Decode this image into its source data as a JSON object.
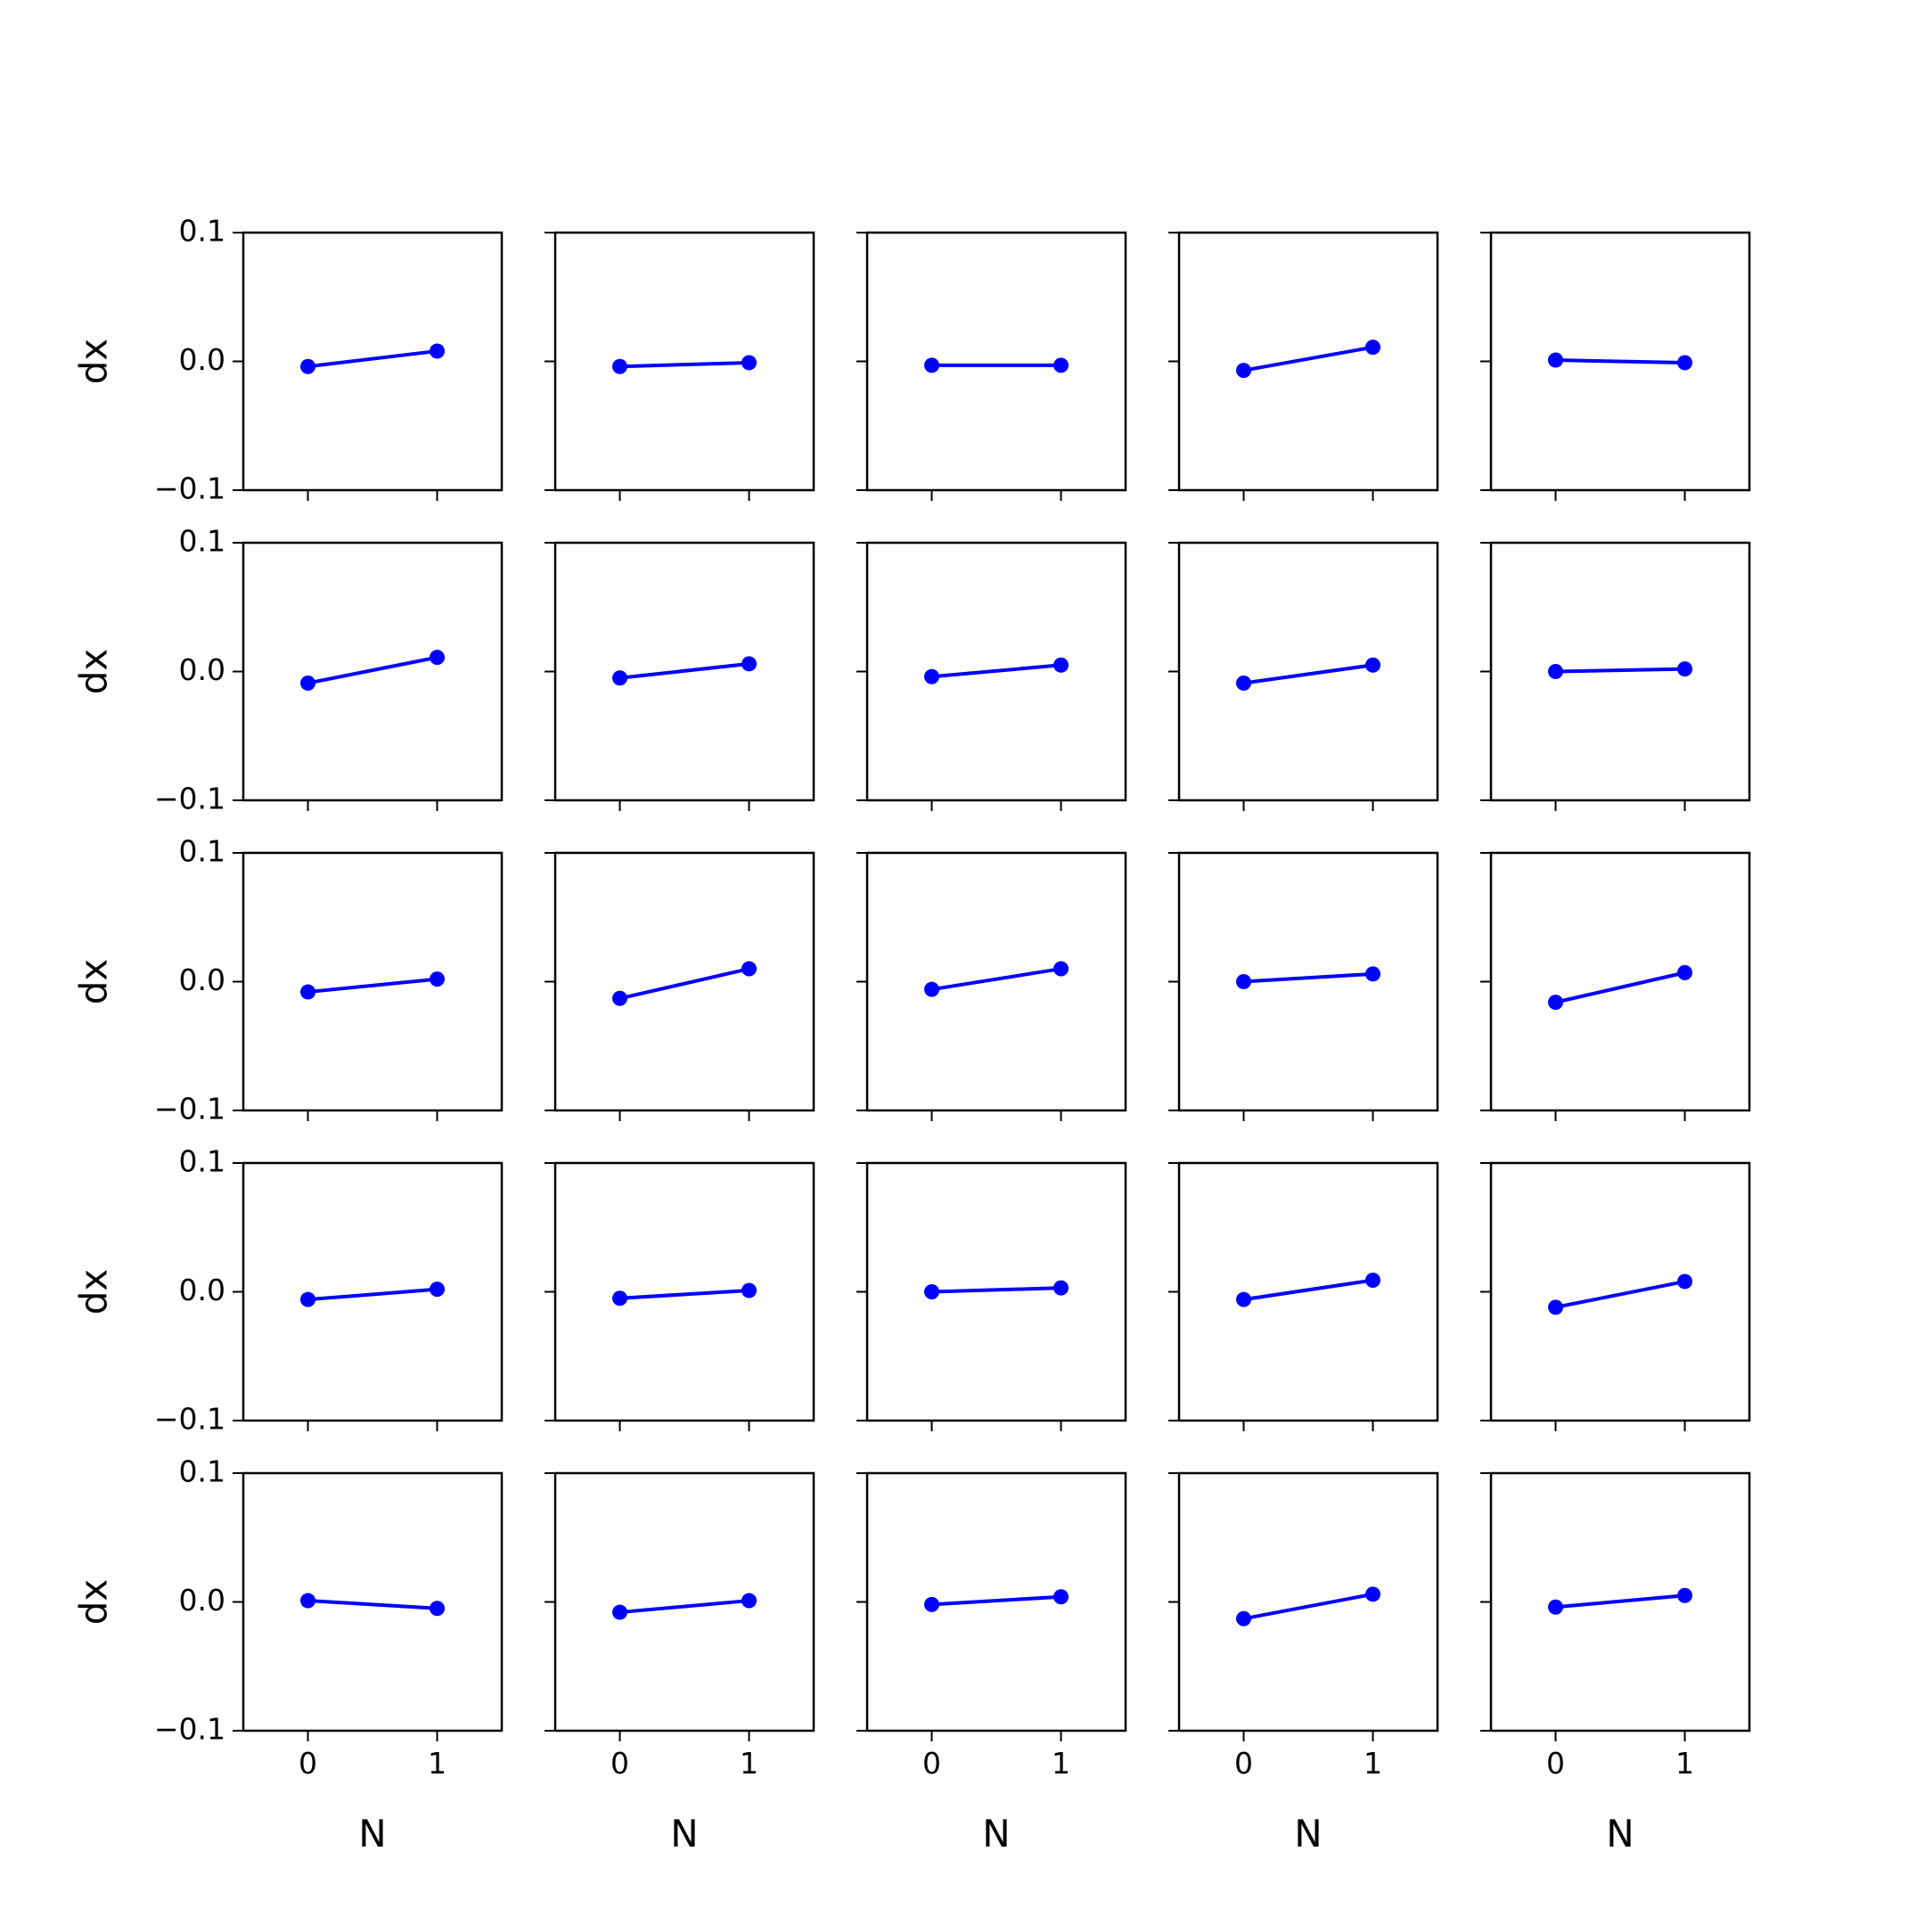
{
  "figure": {
    "background": "#ffffff"
  },
  "chart_data": {
    "type": "line",
    "layout": "5x5 grid of subplots, shared axes",
    "xlabel": "N",
    "ylabel": "dx",
    "xticks": [
      0,
      1
    ],
    "xtick_labels": [
      "0",
      "1"
    ],
    "yticks": [
      -0.1,
      0.0,
      0.1
    ],
    "ytick_labels": [
      "−0.1",
      "0.0",
      "0.1"
    ],
    "xlim": [
      -0.5,
      1.5
    ],
    "ylim": [
      -0.1,
      0.1
    ],
    "grid": false,
    "legend": "none",
    "line_color": "#0000ff",
    "marker": "circle",
    "x": [
      0,
      1
    ],
    "panels": [
      {
        "row": 0,
        "col": 0,
        "y": [
          -0.004,
          0.008
        ]
      },
      {
        "row": 0,
        "col": 1,
        "y": [
          -0.004,
          -0.001
        ]
      },
      {
        "row": 0,
        "col": 2,
        "y": [
          -0.003,
          -0.003
        ]
      },
      {
        "row": 0,
        "col": 3,
        "y": [
          -0.007,
          0.011
        ]
      },
      {
        "row": 0,
        "col": 4,
        "y": [
          0.001,
          -0.001
        ]
      },
      {
        "row": 1,
        "col": 0,
        "y": [
          -0.009,
          0.011
        ]
      },
      {
        "row": 1,
        "col": 1,
        "y": [
          -0.005,
          0.006
        ]
      },
      {
        "row": 1,
        "col": 2,
        "y": [
          -0.004,
          0.005
        ]
      },
      {
        "row": 1,
        "col": 3,
        "y": [
          -0.009,
          0.005
        ]
      },
      {
        "row": 1,
        "col": 4,
        "y": [
          0.0,
          0.002
        ]
      },
      {
        "row": 2,
        "col": 0,
        "y": [
          -0.008,
          0.002
        ]
      },
      {
        "row": 2,
        "col": 1,
        "y": [
          -0.013,
          0.01
        ]
      },
      {
        "row": 2,
        "col": 2,
        "y": [
          -0.006,
          0.01
        ]
      },
      {
        "row": 2,
        "col": 3,
        "y": [
          0.0,
          0.006
        ]
      },
      {
        "row": 2,
        "col": 4,
        "y": [
          -0.016,
          0.007
        ]
      },
      {
        "row": 3,
        "col": 0,
        "y": [
          -0.006,
          0.002
        ]
      },
      {
        "row": 3,
        "col": 1,
        "y": [
          -0.005,
          0.001
        ]
      },
      {
        "row": 3,
        "col": 2,
        "y": [
          0.0,
          0.003
        ]
      },
      {
        "row": 3,
        "col": 3,
        "y": [
          -0.006,
          0.009
        ]
      },
      {
        "row": 3,
        "col": 4,
        "y": [
          -0.012,
          0.008
        ]
      },
      {
        "row": 4,
        "col": 0,
        "y": [
          0.001,
          -0.005
        ]
      },
      {
        "row": 4,
        "col": 1,
        "y": [
          -0.008,
          0.001
        ]
      },
      {
        "row": 4,
        "col": 2,
        "y": [
          -0.002,
          0.004
        ]
      },
      {
        "row": 4,
        "col": 3,
        "y": [
          -0.013,
          0.006
        ]
      },
      {
        "row": 4,
        "col": 4,
        "y": [
          -0.004,
          0.005
        ]
      }
    ]
  }
}
